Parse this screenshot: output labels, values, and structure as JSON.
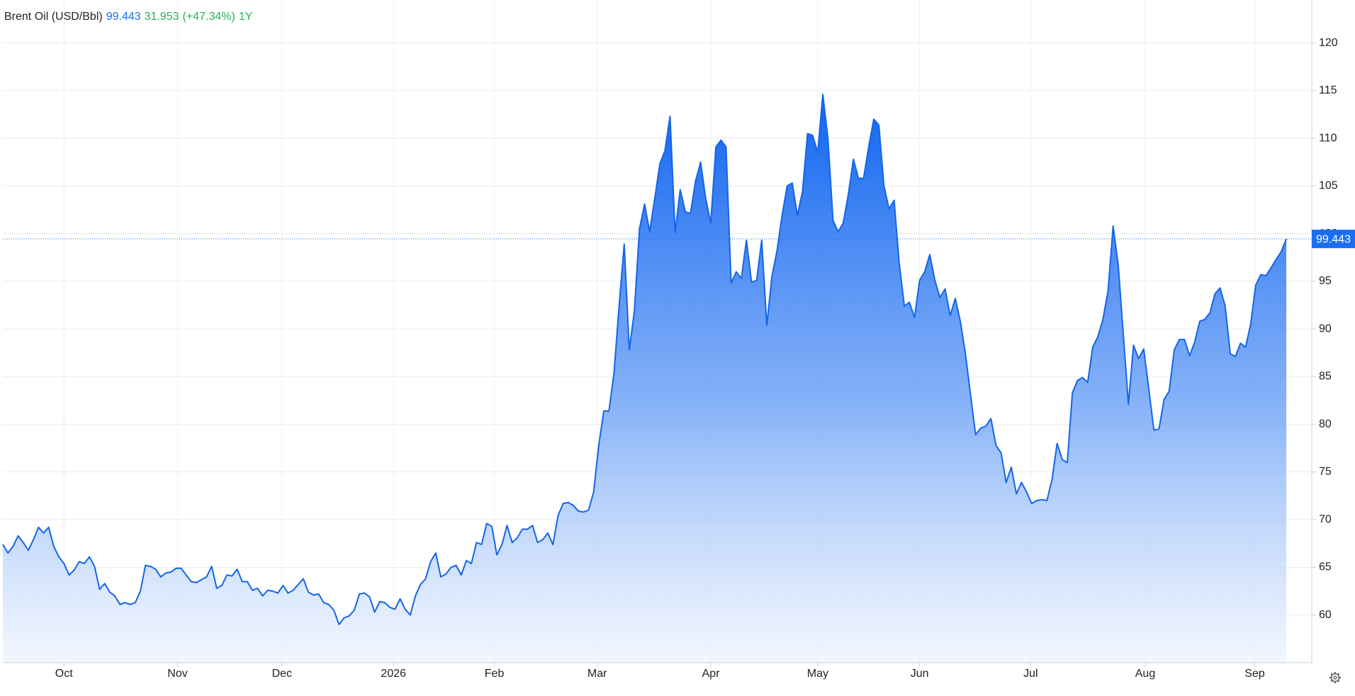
{
  "chart_data": {
    "type": "area",
    "title": "Brent Oil (USD/Bbl)",
    "last_price": 99.443,
    "change": 31.953,
    "change_pct_label": "(+47.34%)",
    "period": "1Y",
    "series": [
      {
        "name": "Brent Oil",
        "color": "#1565e8",
        "values": [
          67.4,
          66.5,
          67.2,
          68.3,
          67.6,
          66.8,
          67.9,
          69.2,
          68.6,
          69.2,
          67.2,
          66.1,
          65.4,
          64.2,
          64.7,
          65.6,
          65.4,
          66.1,
          65.1,
          62.7,
          63.3,
          62.4,
          62.0,
          61.1,
          61.3,
          61.1,
          61.3,
          62.5,
          65.2,
          65.1,
          64.8,
          64.0,
          64.4,
          64.5,
          64.9,
          64.9,
          64.2,
          63.5,
          63.4,
          63.7,
          64.0,
          65.1,
          62.8,
          63.1,
          64.2,
          64.1,
          64.8,
          63.5,
          63.5,
          62.6,
          62.8,
          62.0,
          62.6,
          62.5,
          62.3,
          63.1,
          62.3,
          62.6,
          63.2,
          63.8,
          62.4,
          62.1,
          62.2,
          61.3,
          61.1,
          60.5,
          59.0,
          59.7,
          59.9,
          60.5,
          62.2,
          62.3,
          61.9,
          60.3,
          61.4,
          61.3,
          60.8,
          60.6,
          61.7,
          60.6,
          60.0,
          62.0,
          63.2,
          63.8,
          65.6,
          66.5,
          64.0,
          64.3,
          65.0,
          65.2,
          64.2,
          65.7,
          65.4,
          67.6,
          67.4,
          69.6,
          69.3,
          66.3,
          67.4,
          69.4,
          67.6,
          68.1,
          69.0,
          69.0,
          69.4,
          67.6,
          67.9,
          68.6,
          67.4,
          70.4,
          71.7,
          71.8,
          71.5,
          70.9,
          70.8,
          71.0,
          72.9,
          77.8,
          81.4,
          81.4,
          85.4,
          92.4,
          98.9,
          87.8,
          91.9,
          100.5,
          103.1,
          100.2,
          103.7,
          107.3,
          108.7,
          112.3,
          100.1,
          104.6,
          102.3,
          102.1,
          105.5,
          107.5,
          103.7,
          101.1,
          109.1,
          109.8,
          109.1,
          94.8,
          96.0,
          95.3,
          99.3,
          94.9,
          95.1,
          99.3,
          90.4,
          95.5,
          98.2,
          101.9,
          105.0,
          105.3,
          101.9,
          104.4,
          110.5,
          110.3,
          108.5,
          114.6,
          110.0,
          101.4,
          100.2,
          101.1,
          104.1,
          107.8,
          105.8,
          105.8,
          109.1,
          112.0,
          111.4,
          105.0,
          102.6,
          103.5,
          96.9,
          92.4,
          92.8,
          91.2,
          95.1,
          96.0,
          97.8,
          95.1,
          93.3,
          94.2,
          91.4,
          93.2,
          90.8,
          87.4,
          83.1,
          78.9,
          79.6,
          79.8,
          80.6,
          77.8,
          77.0,
          73.9,
          75.5,
          72.7,
          73.9,
          72.9,
          71.7,
          72.0,
          72.1,
          72.0,
          74.2,
          78.0,
          76.3,
          76.0,
          83.3,
          84.6,
          84.9,
          84.4,
          88.1,
          89.2,
          91.0,
          94.0,
          100.8,
          96.7,
          89.4,
          82.1,
          88.3,
          86.9,
          87.9,
          83.7,
          79.4,
          79.5,
          82.6,
          83.5,
          87.8,
          88.9,
          88.9,
          87.2,
          88.6,
          90.8,
          91.0,
          91.7,
          93.7,
          94.3,
          92.4,
          87.4,
          87.1,
          88.5,
          88.1,
          90.5,
          94.6,
          95.7,
          95.6,
          96.4,
          97.3,
          98.1,
          99.443
        ]
      }
    ],
    "xlim": [
      0,
      257
    ],
    "xticks": [
      {
        "value": 12,
        "label": "Oct"
      },
      {
        "value": 34.3,
        "label": "Nov"
      },
      {
        "value": 54.8,
        "label": "Dec"
      },
      {
        "value": 76.7,
        "label": "2026"
      },
      {
        "value": 96.5,
        "label": "Feb"
      },
      {
        "value": 116.7,
        "label": "Mar"
      },
      {
        "value": 139,
        "label": "Apr"
      },
      {
        "value": 160,
        "label": "May"
      },
      {
        "value": 180,
        "label": "Jun"
      },
      {
        "value": 201.8,
        "label": "Jul"
      },
      {
        "value": 224.3,
        "label": "Aug"
      },
      {
        "value": 245.8,
        "label": "Sep"
      }
    ],
    "ylim": [
      55,
      124.5
    ],
    "yticks": [
      60,
      65,
      70,
      75,
      80,
      85,
      90,
      95,
      100,
      105,
      110,
      115,
      120
    ],
    "grid": true,
    "price_line": true
  }
}
